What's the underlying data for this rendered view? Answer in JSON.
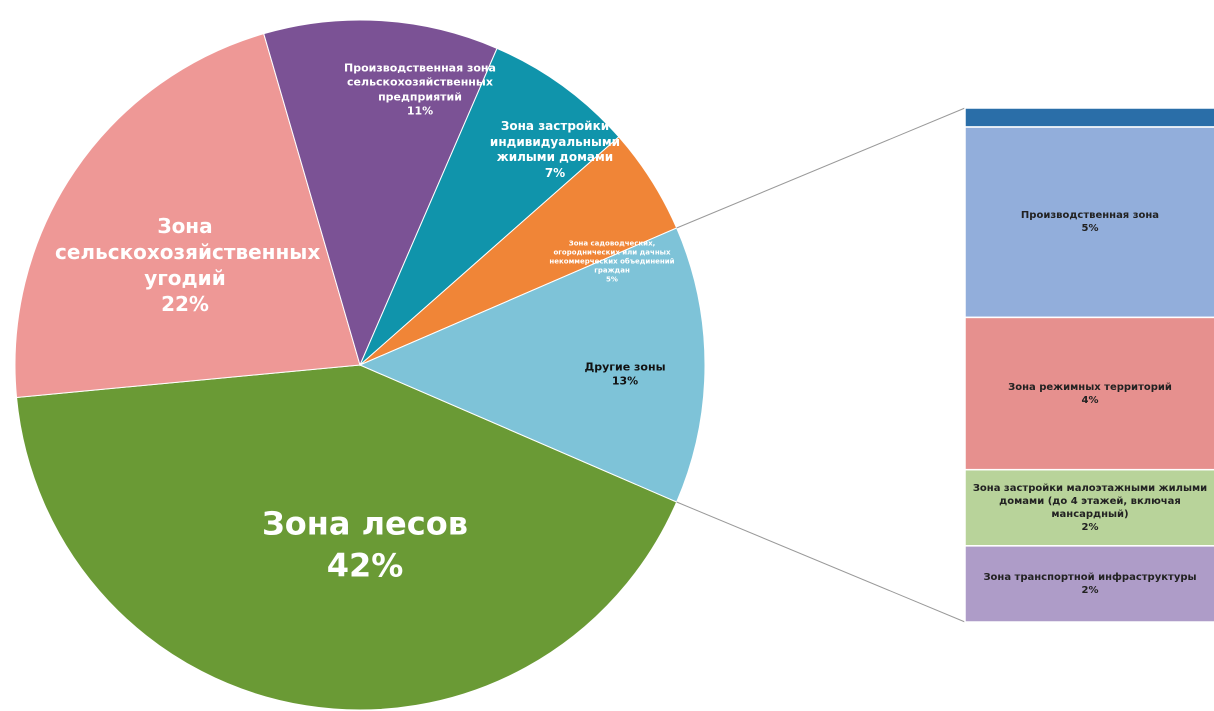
{
  "chart_data": {
    "type": "pie",
    "categories": [
      "Зона лесов",
      "Зона сельскохозяйственных угодий",
      "Производственная зона сельскохозяйственных предприятий",
      "Зона застройки индивидуальными жилыми домами",
      "Зона садоводческих, огороднических или дачных некоммерческих объединений граждан",
      "Другие зоны"
    ],
    "values": [
      42,
      22,
      11,
      7,
      5,
      13
    ],
    "value_labels": [
      "42%",
      "22%",
      "11%",
      "7%",
      "5%",
      "13%"
    ],
    "colors": [
      "#6a9a35",
      "#ee9896",
      "#7b5295",
      "#1094ab",
      "#f08537",
      "#7ec3d8"
    ],
    "bar": {
      "categories": [
        null,
        "Производственная зона",
        "Зона режимных территорий",
        "Зона застройки малоэтажными жилыми домами (до 4 этажей, включая мансардный)",
        "Зона транспортной инфраструктуры"
      ],
      "values": [
        0.5,
        5,
        4,
        2,
        2
      ],
      "value_labels": [
        null,
        "5%",
        "4%",
        "2%",
        "2%"
      ],
      "colors": [
        "#2a6ea8",
        "#92aedb",
        "#e6908e",
        "#b8d39a",
        "#ae9cc8"
      ]
    }
  }
}
